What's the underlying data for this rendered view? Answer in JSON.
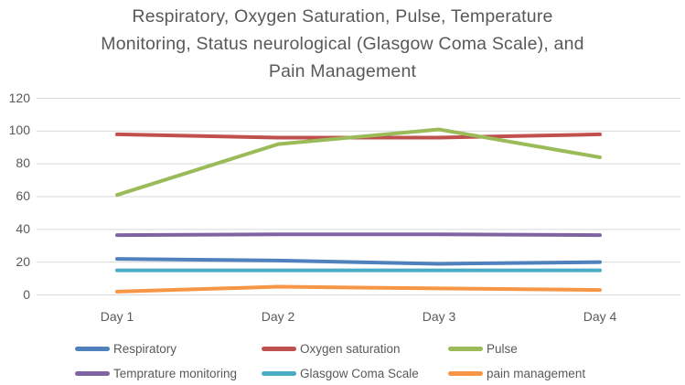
{
  "chart_data": {
    "type": "line",
    "title": "Respiratory, Oxygen Saturation, Pulse, Temperature Monitoring, Status neurological (Glasgow Coma Scale), and Pain Management",
    "title_lines": [
      "Respiratory, Oxygen Saturation, Pulse, Temperature",
      "Monitoring, Status neurological (Glasgow Coma Scale), and",
      "Pain Management"
    ],
    "categories": [
      "Day 1",
      "Day 2",
      "Day 3",
      "Day 4"
    ],
    "series": [
      {
        "name": "Respiratory",
        "color": "#4F81BD",
        "values": [
          22,
          21,
          19,
          20
        ]
      },
      {
        "name": "Oxygen saturation",
        "color": "#C0504D",
        "values": [
          98,
          96,
          96,
          98
        ]
      },
      {
        "name": "Pulse",
        "color": "#9BBB59",
        "values": [
          61,
          92,
          101,
          84
        ]
      },
      {
        "name": "Temprature monitoring",
        "color": "#8064A2",
        "values": [
          36.5,
          37,
          37,
          36.5
        ]
      },
      {
        "name": "Glasgow Coma Scale",
        "color": "#4BACC6",
        "values": [
          15,
          15,
          15,
          15
        ]
      },
      {
        "name": "pain management",
        "color": "#F79646",
        "values": [
          2,
          5,
          4,
          3
        ]
      }
    ],
    "y_ticks": [
      0,
      20,
      40,
      60,
      80,
      100,
      120
    ],
    "ylim": [
      0,
      120
    ],
    "xlabel": "",
    "ylabel": "",
    "grid": true,
    "legend_position": "bottom",
    "colors": {
      "text": "#595959",
      "gridline": "#D9D9D9",
      "background": "#FFFFFF"
    }
  }
}
